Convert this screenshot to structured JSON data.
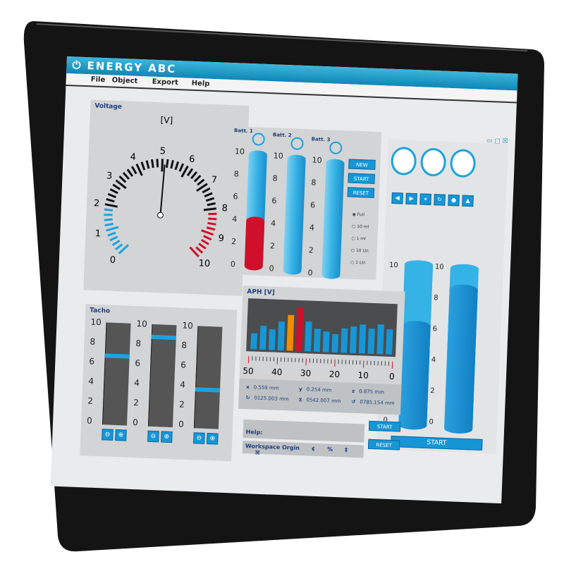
{
  "app": {
    "title": "ENERGY ABC",
    "logo_icon": "power-icon"
  },
  "menu": [
    "File",
    "Object",
    "Export",
    "Help"
  ],
  "window_controls": [
    "minimize",
    "maximize",
    "close"
  ],
  "voltage": {
    "title": "Voltage",
    "unit": "[V]",
    "ticks": [
      "0",
      "1",
      "2",
      "3",
      "4",
      "5",
      "6",
      "7",
      "8",
      "9",
      "10"
    ],
    "value": 5.1,
    "colors": {
      "low": "#1aa3df",
      "mid": "#111111",
      "high": "#d0102a"
    }
  },
  "batteries": {
    "items": [
      {
        "label": "Batt. 1",
        "level": 4.5,
        "color": "#d0102a"
      },
      {
        "label": "Batt. 2",
        "level": 0
      },
      {
        "label": "Batt. 3",
        "level": 0
      }
    ],
    "scale": [
      "0",
      "2",
      "4",
      "6",
      "8",
      "10"
    ],
    "buttons": [
      "NEW",
      "START",
      "RESET"
    ],
    "options": [
      {
        "label": "Full",
        "checked": true
      },
      {
        "label": "10 ml",
        "checked": false
      },
      {
        "label": "1 ml",
        "checked": false
      },
      {
        "label": "10 Ltr.",
        "checked": false
      },
      {
        "label": "1 Ltr.",
        "checked": false
      }
    ]
  },
  "right": {
    "gauges": 3,
    "media_buttons": [
      "prev",
      "next",
      "pause",
      "refresh",
      "record",
      "eject"
    ],
    "tanks": [
      {
        "level": 6.4
      },
      {
        "level": 8.8
      }
    ],
    "scale": [
      "0",
      "2",
      "4",
      "6",
      "8",
      "10"
    ],
    "start_label": "START"
  },
  "tacho": {
    "title": "Tacho",
    "scale": [
      "0",
      "2",
      "4",
      "6",
      "8",
      "10"
    ],
    "sliders": [
      {
        "level": 7.0
      },
      {
        "level": 9.0
      },
      {
        "level": 4.0
      }
    ],
    "minus_icon": "minus-icon",
    "plus_icon": "plus-icon"
  },
  "aph": {
    "title": "APH [V]",
    "bars": [
      35,
      52,
      45,
      63,
      78,
      95,
      65,
      50,
      45,
      40,
      53,
      58,
      63,
      55,
      65,
      55
    ],
    "highlight": {
      "4": "#f28c00",
      "5": "#d0102a"
    },
    "bar_color": "#1796d6",
    "axis": [
      "50",
      "40",
      "30",
      "20",
      "10",
      "0"
    ],
    "coords": [
      {
        "label": "x",
        "value": "0.559 mm"
      },
      {
        "label": "y",
        "value": "0.254 mm"
      },
      {
        "label": "z",
        "value": "0.875 mm"
      },
      {
        "label": "↻",
        "value": "0125.003 mm"
      },
      {
        "label": "⧖",
        "value": "0542.007 mm"
      },
      {
        "label": "↺",
        "value": "0785.154 mm"
      }
    ]
  },
  "help": {
    "label": "Help:",
    "start": "START",
    "reset": "RESET",
    "workspace": "Workspace Orgin",
    "symbols": [
      "¢",
      "%",
      "‡",
      "⌘"
    ]
  }
}
